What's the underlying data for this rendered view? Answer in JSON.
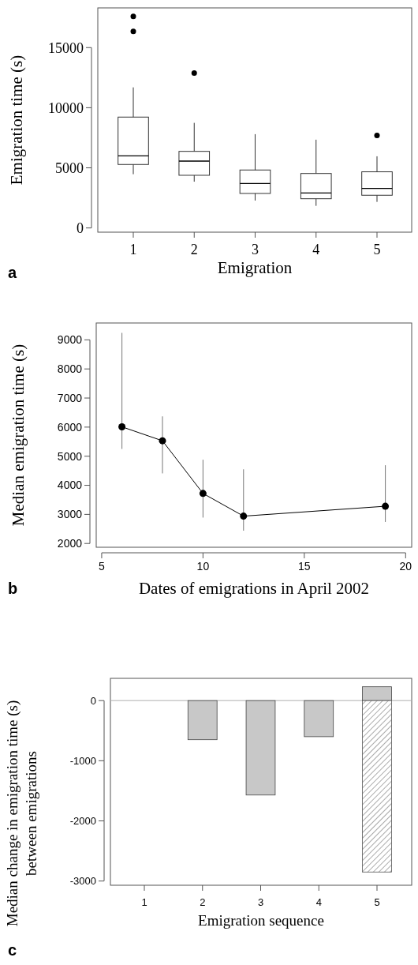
{
  "chart_data": [
    {
      "type": "box",
      "xlabel": "Emigration",
      "ylabel": "Emigration time (s)",
      "annotations": [
        "a"
      ],
      "categories": [
        "1",
        "2",
        "3",
        "4",
        "5"
      ],
      "ylim": [
        -350,
        18300
      ],
      "yticks": [
        0,
        5000,
        10000,
        15000
      ],
      "boxes": [
        {
          "low": 4470,
          "q1": 5280,
          "median": 6000,
          "q3": 9220,
          "high": 11690,
          "outliers": [
            16340,
            17590
          ]
        },
        {
          "low": 3850,
          "q1": 4380,
          "median": 5560,
          "q3": 6370,
          "high": 8740,
          "outliers": [
            12880
          ]
        },
        {
          "low": 2280,
          "q1": 2870,
          "median": 3700,
          "q3": 4820,
          "high": 7800
        },
        {
          "low": 1840,
          "q1": 2430,
          "median": 2910,
          "q3": 4530,
          "high": 7340
        },
        {
          "low": 2170,
          "q1": 2720,
          "median": 3290,
          "q3": 4670,
          "high": 5960,
          "outliers": [
            7690
          ]
        }
      ]
    },
    {
      "type": "line",
      "xlabel": "Dates of emigrations in April 2002",
      "ylabel": "Median emigration time (s)",
      "annotations": [
        "b"
      ],
      "x": [
        6,
        8,
        10,
        12,
        19
      ],
      "values": [
        6010,
        5530,
        3720,
        2940,
        3280
      ],
      "color": "#000000",
      "marker": "circle",
      "errors": [
        [
          5250,
          9240
        ],
        [
          4410,
          6370
        ],
        [
          2890,
          4880
        ],
        [
          2440,
          4550
        ],
        [
          2740,
          4690
        ]
      ],
      "xlim": [
        4.73,
        20.3
      ],
      "xticks": [
        5,
        10,
        15,
        20
      ],
      "ylim": [
        1870,
        9580
      ],
      "yticks": [
        2000,
        3000,
        4000,
        5000,
        6000,
        7000,
        8000,
        9000
      ]
    },
    {
      "type": "bar",
      "stacked": true,
      "xlabel": "Emigration sequence",
      "ylabel": "Median change in emigration time (s) between emigrations",
      "annotations": [
        "c"
      ],
      "categories": [
        "1",
        "2",
        "3",
        "4",
        "5"
      ],
      "series": [
        {
          "color": "#c8c8c8",
          "values": [
            null,
            -650,
            -1570,
            -600,
            230
          ]
        },
        {
          "color": "#555555",
          "values": [
            null,
            null,
            null,
            null,
            -2850
          ]
        }
      ],
      "ref_lines": [
        {
          "axis": "y",
          "value": 0,
          "color": "#b0b0b0"
        }
      ],
      "ylim": [
        -3070,
        370
      ],
      "yticks": [
        -3000,
        -2000,
        -1000,
        0
      ]
    }
  ]
}
